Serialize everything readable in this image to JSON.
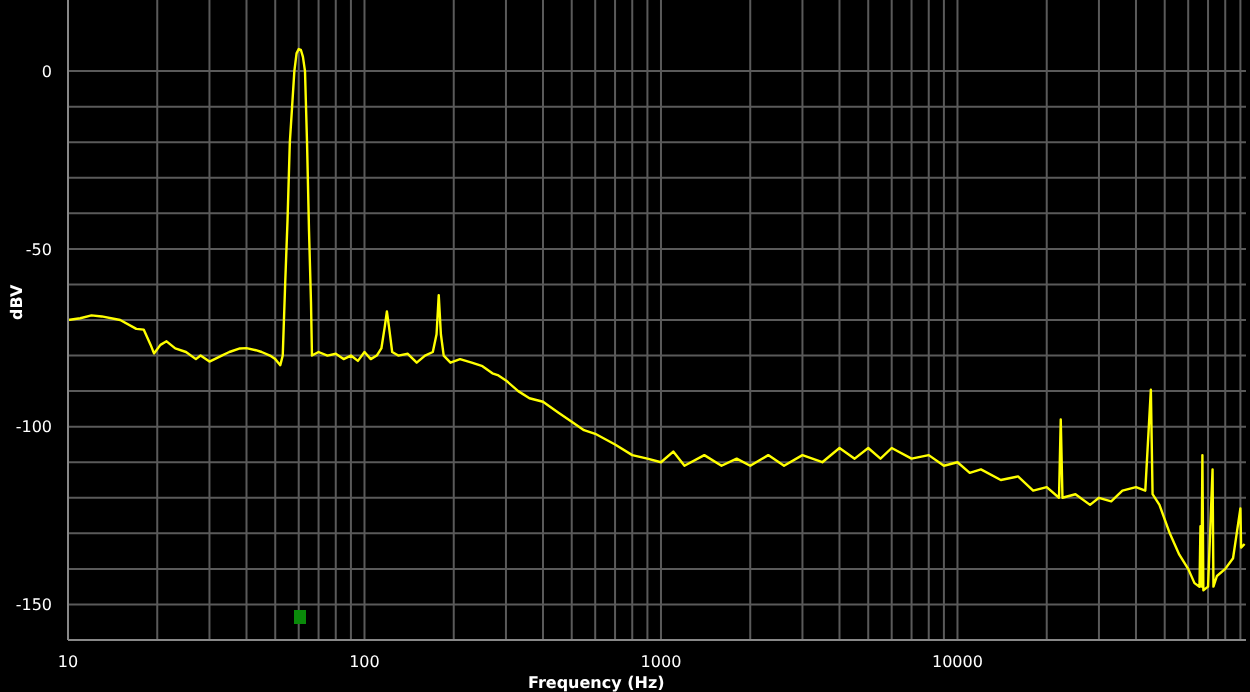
{
  "chart_data": {
    "type": "line",
    "xlabel": "Frequency (Hz)",
    "ylabel": "dBV",
    "log": "x",
    "grid": true,
    "marker": "none",
    "line_style": "solid",
    "xlim": [
      10,
      94000
    ],
    "ylim": [
      -160,
      20
    ],
    "xticks": [
      10,
      {
        "value": 20,
        "label": null
      },
      {
        "value": 30,
        "label": null
      },
      {
        "value": 40,
        "label": null
      },
      {
        "value": 50,
        "label": null
      },
      {
        "value": 60,
        "label": null
      },
      {
        "value": 70,
        "label": null
      },
      {
        "value": 80,
        "label": null
      },
      {
        "value": 90,
        "label": null
      },
      100,
      {
        "value": 200,
        "label": null
      },
      {
        "value": 300,
        "label": null
      },
      {
        "value": 400,
        "label": null
      },
      {
        "value": 500,
        "label": null
      },
      {
        "value": 600,
        "label": null
      },
      {
        "value": 700,
        "label": null
      },
      {
        "value": 800,
        "label": null
      },
      {
        "value": 900,
        "label": null
      },
      1000,
      {
        "value": 2000,
        "label": null
      },
      {
        "value": 3000,
        "label": null
      },
      {
        "value": 4000,
        "label": null
      },
      {
        "value": 5000,
        "label": null
      },
      {
        "value": 6000,
        "label": null
      },
      {
        "value": 7000,
        "label": null
      },
      {
        "value": 8000,
        "label": null
      },
      {
        "value": 9000,
        "label": null
      },
      10000,
      {
        "value": 20000,
        "label": null
      },
      {
        "value": 30000,
        "label": null
      },
      {
        "value": 40000,
        "label": null
      },
      {
        "value": 50000,
        "label": null
      },
      {
        "value": 60000,
        "label": null
      },
      {
        "value": 70000,
        "label": null
      },
      {
        "value": 80000,
        "label": null
      },
      {
        "value": 90000,
        "label": null
      }
    ],
    "yticks": [
      -150,
      {
        "value": -140,
        "label": null
      },
      {
        "value": -130,
        "label": null
      },
      {
        "value": -120,
        "label": null
      },
      {
        "value": -110,
        "label": null
      },
      -100,
      {
        "value": -90,
        "label": null
      },
      {
        "value": -80,
        "label": null
      },
      {
        "value": -70,
        "label": null
      },
      {
        "value": -60,
        "label": null
      },
      -50,
      {
        "value": -40,
        "label": null
      },
      {
        "value": -30,
        "label": null
      },
      {
        "value": -20,
        "label": null
      },
      {
        "value": -10,
        "label": null
      },
      0
    ],
    "x": [
      10,
      11,
      12,
      13,
      15,
      17,
      18,
      19,
      19.5,
      20.5,
      21.5,
      23,
      25,
      27,
      28,
      30,
      33,
      35,
      38,
      40,
      43,
      45,
      48,
      50,
      52,
      53,
      54,
      55,
      56,
      57,
      58,
      59,
      60,
      61,
      62,
      63,
      64,
      65,
      66,
      66.5,
      70,
      75,
      80,
      85,
      90,
      95,
      100,
      105,
      110,
      114,
      117,
      119,
      121,
      124,
      130,
      140,
      150,
      160,
      170,
      175,
      178,
      181,
      185,
      195,
      210,
      230,
      250,
      270,
      283,
      300,
      330,
      360,
      400,
      450,
      500,
      550,
      600,
      700,
      800,
      900,
      1000,
      1100,
      1200,
      1400,
      1600,
      1800,
      2000,
      2300,
      2600,
      3000,
      3500,
      4000,
      4500,
      5000,
      5500,
      6000,
      7000,
      8000,
      9000,
      10000,
      11000,
      12000,
      14000,
      16000,
      18000,
      20000,
      22000,
      22300,
      22600,
      25000,
      28000,
      30000,
      33000,
      36000,
      40000,
      43000,
      44900,
      45500,
      48000,
      52000,
      56000,
      60000,
      63000,
      65500,
      66000,
      66500,
      67000,
      67500,
      70000,
      72500,
      73000,
      75000,
      80000,
      85000,
      90000,
      90500,
      93000
    ],
    "series": [
      {
        "color": "#ffff00",
        "values": [
          -70,
          -69.5,
          -68.7,
          -69,
          -70,
          -72.5,
          -72.7,
          -77,
          -79.4,
          -77,
          -76,
          -78,
          -79,
          -81,
          -80,
          -81.7,
          -80,
          -79,
          -78,
          -77.9,
          -78.5,
          -79,
          -80,
          -81,
          -82.7,
          -80,
          -60,
          -42,
          -20,
          -10,
          0,
          5,
          6.2,
          6,
          4,
          0,
          -20,
          -45,
          -65,
          -80,
          -79,
          -80,
          -79.5,
          -81,
          -80,
          -81.5,
          -79,
          -81,
          -80,
          -78,
          -72,
          -67.6,
          -72,
          -79,
          -80,
          -79.5,
          -82,
          -80,
          -79,
          -74,
          -63,
          -74,
          -80,
          -82,
          -81,
          -82,
          -83,
          -85,
          -85.6,
          -87,
          -90,
          -92,
          -93,
          -96,
          -98.6,
          -101,
          -102,
          -105,
          -108,
          -109,
          -110,
          -107,
          -111,
          -108,
          -111,
          -109,
          -111,
          -108,
          -111,
          -108,
          -110,
          -106,
          -109,
          -106,
          -109,
          -106,
          -109,
          -108,
          -111,
          -110,
          -113,
          -112,
          -115,
          -114,
          -118,
          -117,
          -120,
          -98,
          -120,
          -119,
          -122,
          -120,
          -121,
          -118,
          -117,
          -118,
          -89.6,
          -119,
          -122,
          -130,
          -136,
          -140,
          -144,
          -145,
          -128,
          -145,
          -108,
          -146,
          -145,
          -112,
          -145,
          -142,
          -140,
          -137,
          -123,
          -134,
          -133
        ]
      }
    ]
  }
}
